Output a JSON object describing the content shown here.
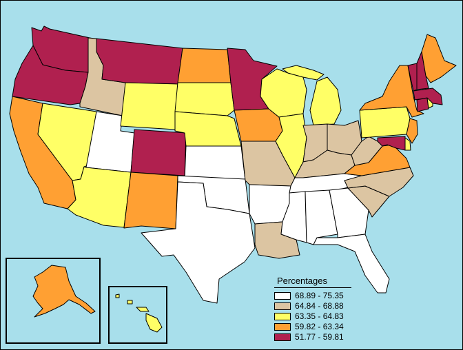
{
  "legend": {
    "title": "Percentages",
    "classes": [
      {
        "label": "68.89 - 75.35",
        "color": "#ffffff"
      },
      {
        "label": "64.84 - 68.88",
        "color": "#dcc5a2"
      },
      {
        "label": "63.35 - 64.83",
        "color": "#ffff66"
      },
      {
        "label": "59.82 - 63.34",
        "color": "#ffa033"
      },
      {
        "label": "51.77 - 59.81",
        "color": "#b0204f"
      }
    ]
  },
  "regions": [
    {
      "name": "WA",
      "class": 4
    },
    {
      "name": "OR",
      "class": 4
    },
    {
      "name": "CA",
      "class": 3
    },
    {
      "name": "ID",
      "class": 1
    },
    {
      "name": "NV",
      "class": 2
    },
    {
      "name": "UT",
      "class": 0
    },
    {
      "name": "AZ",
      "class": 2
    },
    {
      "name": "MT",
      "class": 4
    },
    {
      "name": "WY",
      "class": 2
    },
    {
      "name": "CO",
      "class": 4
    },
    {
      "name": "NM",
      "class": 3
    },
    {
      "name": "ND",
      "class": 3
    },
    {
      "name": "SD",
      "class": 2
    },
    {
      "name": "NE",
      "class": 2
    },
    {
      "name": "KS",
      "class": 0
    },
    {
      "name": "OK",
      "class": 0
    },
    {
      "name": "TX",
      "class": 0
    },
    {
      "name": "MN",
      "class": 4
    },
    {
      "name": "IA",
      "class": 3
    },
    {
      "name": "MO",
      "class": 1
    },
    {
      "name": "AR",
      "class": 0
    },
    {
      "name": "LA",
      "class": 1
    },
    {
      "name": "WI",
      "class": 2
    },
    {
      "name": "IL",
      "class": 2
    },
    {
      "name": "MI",
      "class": 2
    },
    {
      "name": "IN",
      "class": 1
    },
    {
      "name": "OH",
      "class": 1
    },
    {
      "name": "KY",
      "class": 1
    },
    {
      "name": "TN",
      "class": 0
    },
    {
      "name": "MS",
      "class": 0
    },
    {
      "name": "AL",
      "class": 0
    },
    {
      "name": "GA",
      "class": 0
    },
    {
      "name": "FL",
      "class": 0
    },
    {
      "name": "SC",
      "class": 1
    },
    {
      "name": "NC",
      "class": 1
    },
    {
      "name": "VA",
      "class": 3
    },
    {
      "name": "WV",
      "class": 1
    },
    {
      "name": "PA",
      "class": 2
    },
    {
      "name": "NY",
      "class": 3
    },
    {
      "name": "NJ",
      "class": 3
    },
    {
      "name": "DE",
      "class": 2
    },
    {
      "name": "MD",
      "class": 4
    },
    {
      "name": "CT",
      "class": 4
    },
    {
      "name": "RI",
      "class": 2
    },
    {
      "name": "MA",
      "class": 4
    },
    {
      "name": "VT",
      "class": 4
    },
    {
      "name": "NH",
      "class": 4
    },
    {
      "name": "ME",
      "class": 3
    },
    {
      "name": "AK",
      "class": 3
    },
    {
      "name": "HI",
      "class": 2
    }
  ]
}
